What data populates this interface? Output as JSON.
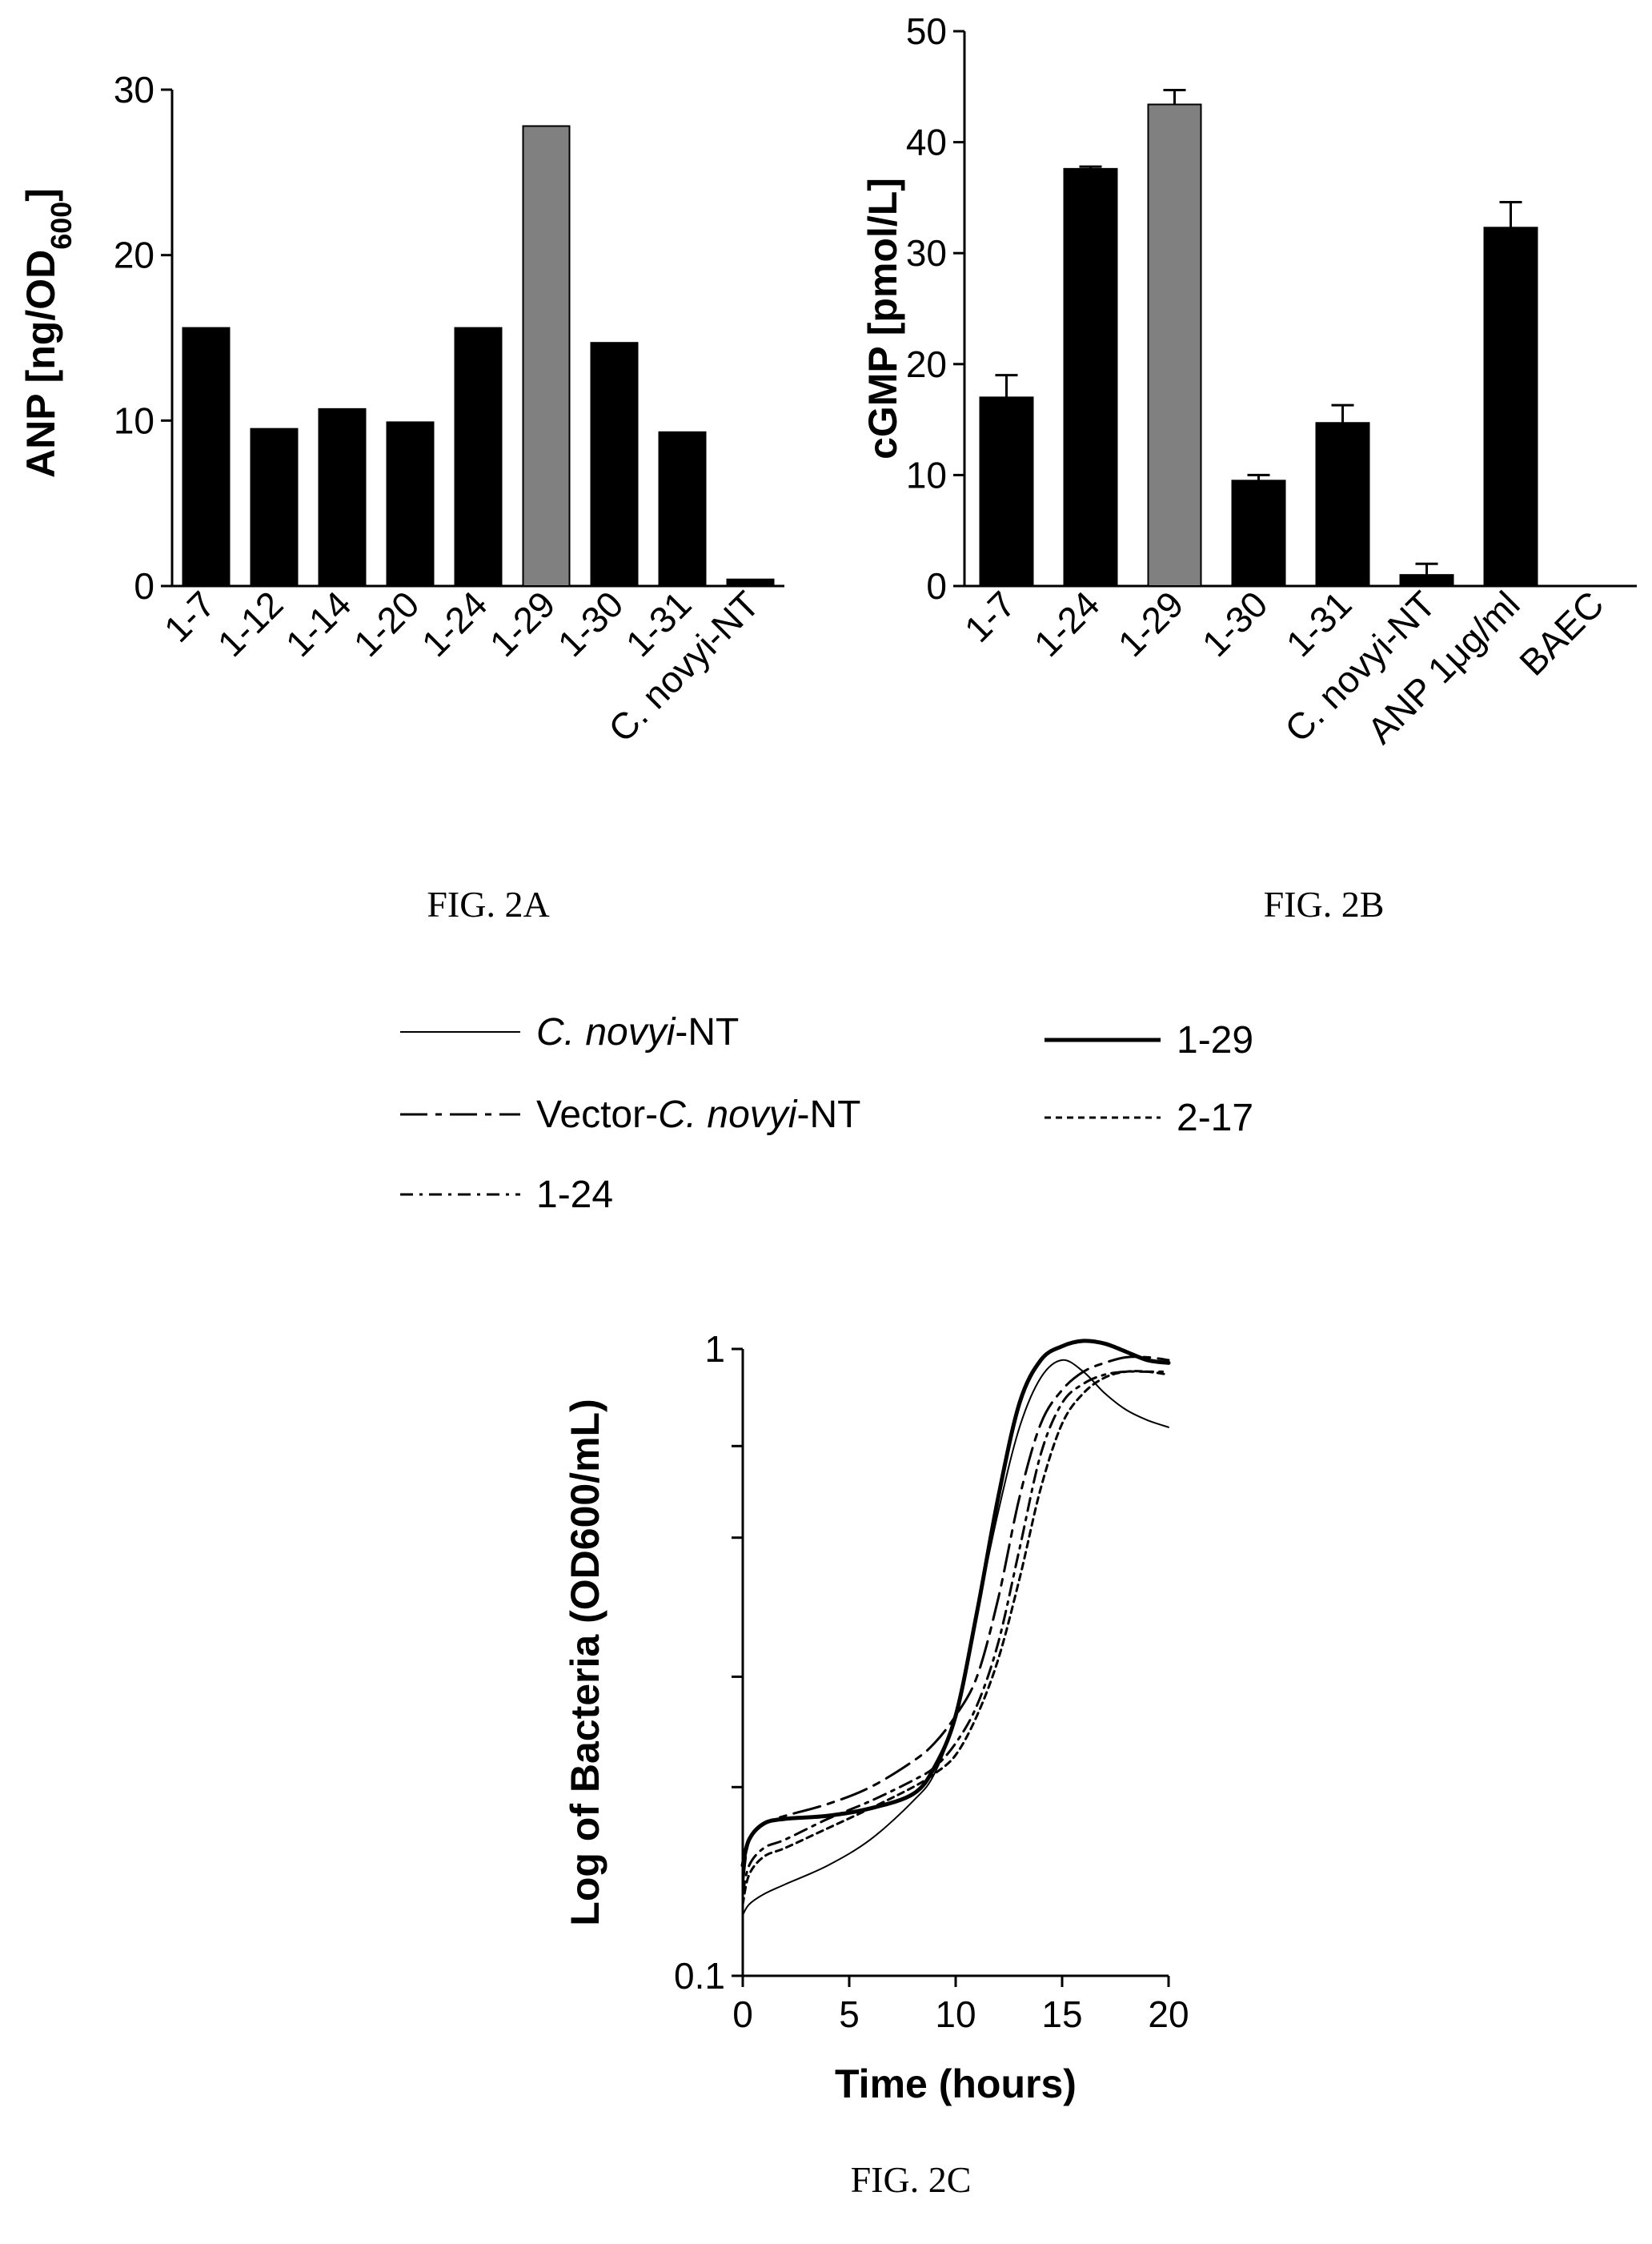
{
  "chart_data": [
    {
      "type": "bar",
      "caption": "FIG. 2A",
      "ylabel": "ANP [ng/OD600]",
      "ylabel_parts": {
        "main": "ANP [ng/OD",
        "sub": "600",
        "end": "]"
      },
      "ylim": [
        0,
        30
      ],
      "yticks": [
        "0",
        "10",
        "20",
        "30"
      ],
      "categories": [
        "1-7",
        "1-12",
        "1-14",
        "1-20",
        "1-24",
        "1-29",
        "1-30",
        "1-31",
        "C. novyi-NT"
      ],
      "values": [
        15.6,
        9.5,
        10.7,
        9.9,
        15.6,
        27.8,
        14.7,
        9.3,
        0.4
      ],
      "highlight_index": 5,
      "colors": {
        "bar": "#000000",
        "highlight": "#808080"
      }
    },
    {
      "type": "bar",
      "caption": "FIG. 2B",
      "ylabel": "cGMP [pmol/L]",
      "ylim": [
        0,
        50
      ],
      "yticks": [
        "0",
        "10",
        "20",
        "30",
        "40",
        "50"
      ],
      "categories": [
        "1-7",
        "1-24",
        "1-29",
        "1-30",
        "1-31",
        "C. novyi-NT",
        "ANP 1μg/ml",
        "BAEC"
      ],
      "values": [
        17.0,
        37.6,
        43.4,
        9.5,
        14.7,
        1.0,
        32.3,
        0
      ],
      "errors": [
        2.0,
        0.2,
        1.3,
        0.5,
        1.6,
        1.0,
        2.3,
        0
      ],
      "highlight_index": 2,
      "colors": {
        "bar": "#000000",
        "highlight": "#808080"
      }
    },
    {
      "type": "line",
      "caption": "FIG. 2C",
      "xlabel": "Time (hours)",
      "ylabel": "Log of Bacteria (OD600/mL)",
      "xlim": [
        0,
        20
      ],
      "xticks": [
        "0",
        "5",
        "10",
        "15",
        "20"
      ],
      "ylim": [
        0.1,
        1
      ],
      "yscale": "log",
      "yticks": [
        "0.1",
        "1"
      ],
      "legend": [
        {
          "name": "C. novyi",
          "suffix": "-NT",
          "italic_part": "C. novyi"
        },
        {
          "name": "1-29"
        },
        {
          "name": "Vector-",
          "mid": "C. novyi",
          "suffix": "-NT"
        },
        {
          "name": "2-17"
        },
        {
          "name": "1-24"
        }
      ],
      "series": [
        {
          "name": "C. novyi-NT",
          "style": "thin",
          "x": [
            0,
            0.3,
            1,
            2,
            4,
            6,
            8,
            9,
            10,
            11,
            12,
            13,
            14,
            15,
            16,
            17,
            18,
            19,
            20
          ],
          "y": [
            0.125,
            0.13,
            0.135,
            0.14,
            0.15,
            0.165,
            0.19,
            0.21,
            0.26,
            0.38,
            0.55,
            0.75,
            0.9,
            0.96,
            0.92,
            0.85,
            0.8,
            0.77,
            0.75
          ]
        },
        {
          "name": "1-29",
          "style": "thick",
          "x": [
            0,
            0.3,
            1,
            2,
            4,
            6,
            8,
            9,
            10,
            11,
            12,
            13,
            14,
            15,
            16,
            17,
            18,
            19,
            20
          ],
          "y": [
            0.15,
            0.165,
            0.175,
            0.178,
            0.18,
            0.185,
            0.195,
            0.215,
            0.26,
            0.38,
            0.58,
            0.82,
            0.96,
            1.01,
            1.03,
            1.02,
            0.99,
            0.96,
            0.95
          ]
        },
        {
          "name": "Vector-C. novyi-NT",
          "style": "longdash",
          "x": [
            0,
            0.3,
            1,
            2,
            4,
            6,
            8,
            9,
            10,
            11,
            12,
            13,
            14,
            15,
            16,
            17,
            18,
            19,
            20
          ],
          "y": [
            0.14,
            0.165,
            0.175,
            0.18,
            0.188,
            0.2,
            0.22,
            0.235,
            0.26,
            0.3,
            0.4,
            0.58,
            0.76,
            0.86,
            0.92,
            0.95,
            0.97,
            0.97,
            0.96
          ]
        },
        {
          "name": "2-17",
          "style": "shortdash",
          "x": [
            0,
            0.3,
            1,
            2,
            4,
            6,
            8,
            9,
            10,
            11,
            12,
            13,
            14,
            15,
            16,
            17,
            18,
            19,
            20
          ],
          "y": [
            0.13,
            0.145,
            0.155,
            0.16,
            0.172,
            0.185,
            0.2,
            0.21,
            0.225,
            0.26,
            0.32,
            0.43,
            0.6,
            0.76,
            0.85,
            0.9,
            0.92,
            0.92,
            0.91
          ]
        },
        {
          "name": "1-24",
          "style": "dashdot",
          "x": [
            0,
            0.3,
            1,
            2,
            4,
            6,
            8,
            9,
            10,
            11,
            12,
            13,
            14,
            15,
            16,
            17,
            18,
            19,
            20
          ],
          "y": [
            0.135,
            0.15,
            0.16,
            0.165,
            0.178,
            0.19,
            0.205,
            0.215,
            0.235,
            0.27,
            0.34,
            0.48,
            0.68,
            0.82,
            0.88,
            0.91,
            0.92,
            0.92,
            0.92
          ]
        }
      ]
    }
  ]
}
